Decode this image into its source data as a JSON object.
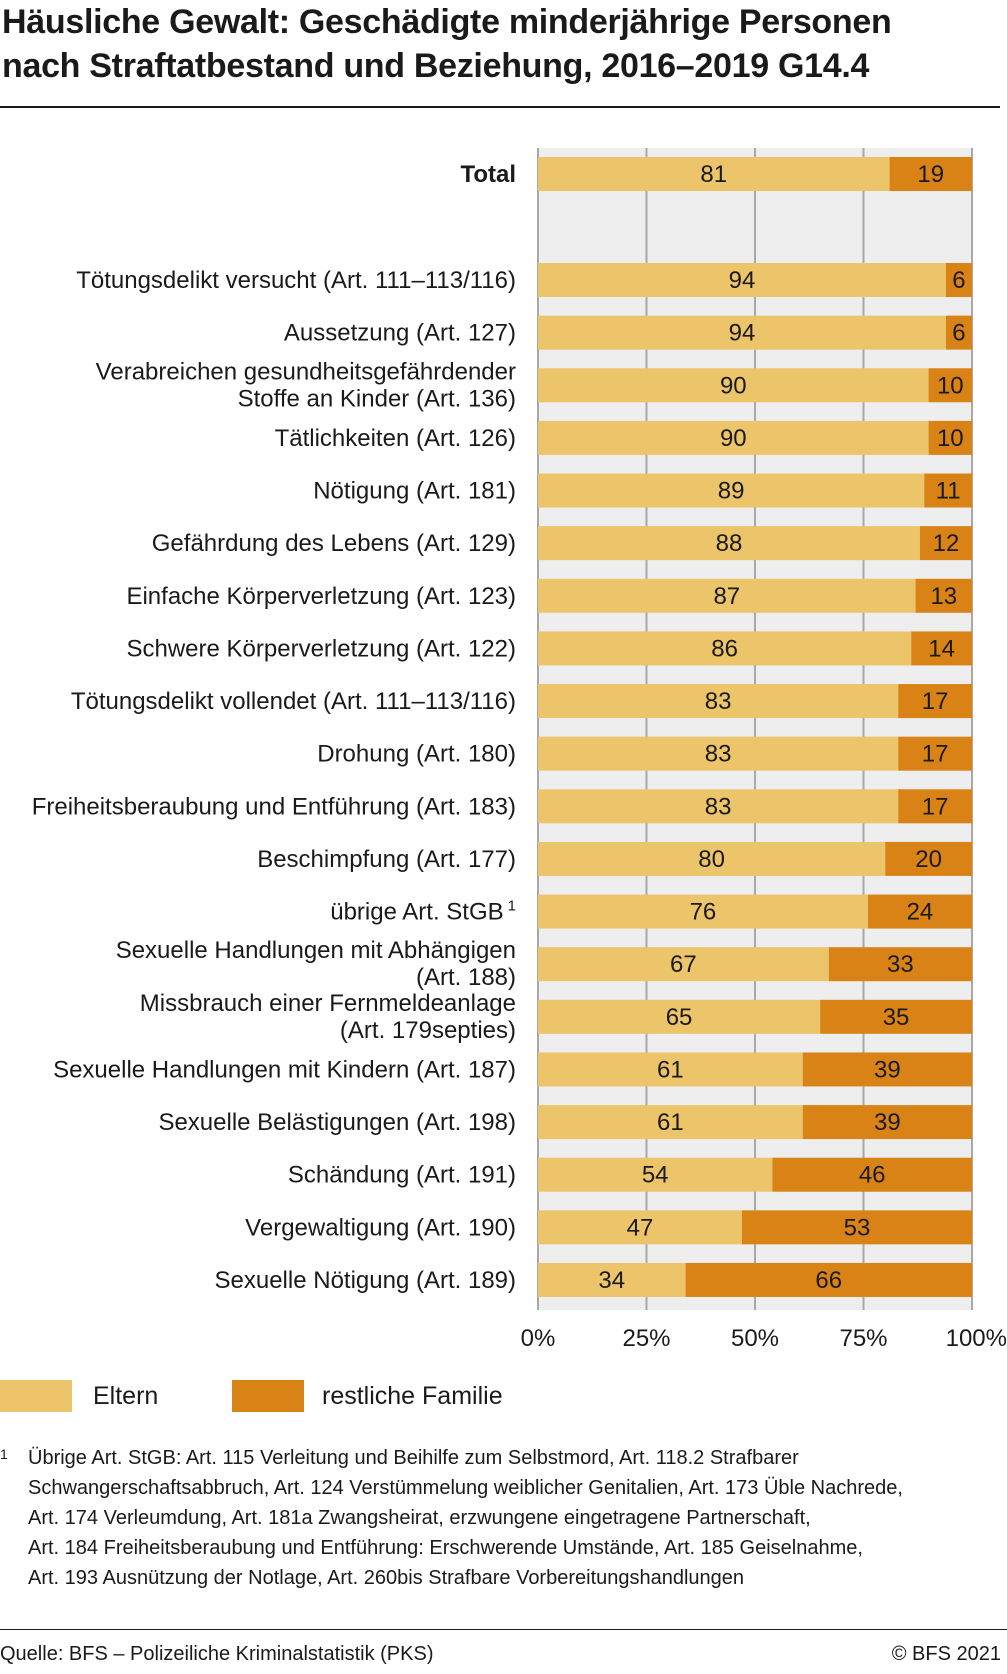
{
  "title_lines": [
    "Häusliche Gewalt: Geschädigte minderjährige Personen",
    "nach Straftatbestand und Beziehung, 2016–2019  G14.4"
  ],
  "colors": {
    "eltern": "#ECC46A",
    "restliche_familie": "#D98317",
    "plot_bg": "#EEEEEE",
    "grid": "#A8A8A8"
  },
  "legend": [
    {
      "label": "Eltern",
      "color": "#ECC46A"
    },
    {
      "label": "restliche Familie",
      "color": "#D98317"
    }
  ],
  "chart_data": {
    "type": "bar",
    "orientation": "horizontal",
    "stacked": true,
    "x_ticks": [
      "0%",
      "25%",
      "50%",
      "75%",
      "100%"
    ],
    "xlim": [
      0,
      100
    ],
    "grid": true,
    "legend_position": "bottom-left",
    "categories": [
      {
        "label": "Total",
        "bold": true,
        "values": [
          81,
          19
        ]
      },
      {
        "label": "Tötungsdelikt versucht (Art. 111–113/116)",
        "values": [
          94,
          6
        ]
      },
      {
        "label": "Aussetzung (Art. 127)",
        "values": [
          94,
          6
        ]
      },
      {
        "label": [
          "Verabreichen gesundheitsgefährdender",
          "Stoffe an Kinder (Art. 136)"
        ],
        "values": [
          90,
          10
        ]
      },
      {
        "label": "Tätlichkeiten (Art. 126)",
        "values": [
          90,
          10
        ]
      },
      {
        "label": "Nötigung (Art. 181)",
        "values": [
          89,
          11
        ]
      },
      {
        "label": "Gefährdung des Lebens (Art. 129)",
        "values": [
          88,
          12
        ]
      },
      {
        "label": "Einfache Körperverletzung (Art. 123)",
        "values": [
          87,
          13
        ]
      },
      {
        "label": "Schwere Körperverletzung (Art. 122)",
        "values": [
          86,
          14
        ]
      },
      {
        "label": "Tötungsdelikt vollendet (Art. 111–113/116)",
        "values": [
          83,
          17
        ]
      },
      {
        "label": "Drohung (Art. 180)",
        "values": [
          83,
          17
        ]
      },
      {
        "label": "Freiheitsberaubung und Entführung (Art. 183)",
        "values": [
          83,
          17
        ]
      },
      {
        "label": "Beschimpfung (Art. 177)",
        "values": [
          80,
          20
        ]
      },
      {
        "label": "übrige Art. StGB",
        "sup": "1",
        "values": [
          76,
          24
        ]
      },
      {
        "label": [
          "Sexuelle Handlungen mit Abhängigen",
          "(Art. 188)"
        ],
        "values": [
          67,
          33
        ]
      },
      {
        "label": [
          "Missbrauch einer Fernmeldeanlage",
          "(Art. 179septies)"
        ],
        "values": [
          65,
          35
        ]
      },
      {
        "label": "Sexuelle Handlungen mit Kindern (Art. 187)",
        "values": [
          61,
          39
        ]
      },
      {
        "label": "Sexuelle Belästigungen (Art. 198)",
        "values": [
          61,
          39
        ]
      },
      {
        "label": "Schändung (Art. 191)",
        "values": [
          54,
          46
        ]
      },
      {
        "label": "Vergewaltigung (Art. 190)",
        "values": [
          47,
          53
        ]
      },
      {
        "label": "Sexuelle Nötigung (Art. 189)",
        "values": [
          34,
          66
        ]
      }
    ],
    "series": [
      {
        "name": "Eltern",
        "color": "#ECC46A"
      },
      {
        "name": "restliche Familie",
        "color": "#D98317"
      }
    ]
  },
  "footnote": {
    "marker": "1",
    "lines": [
      "Übrige Art. StGB:  Art. 115 Verleitung und Beihilfe zum Selbstmord, Art. 118.2 Strafbarer",
      "Schwangerschaftsabbruch, Art. 124 Verstümmelung weiblicher Genitalien, Art. 173 Üble Nachrede,",
      "Art. 174 Verleumdung, Art. 181a Zwangsheirat, erzwungene eingetragene Partnerschaft,",
      "Art. 184 Freiheitsberaubung und Entführung: Erschwerende Umstände, Art. 185 Geiselnahme,",
      "Art. 193 Ausnützung der Notlage, Art. 260bis Strafbare Vorbereitungshandlungen"
    ]
  },
  "source": "Quelle: BFS – Polizeiliche Kriminalstatistik (PKS)",
  "copyright": "© BFS 2021"
}
